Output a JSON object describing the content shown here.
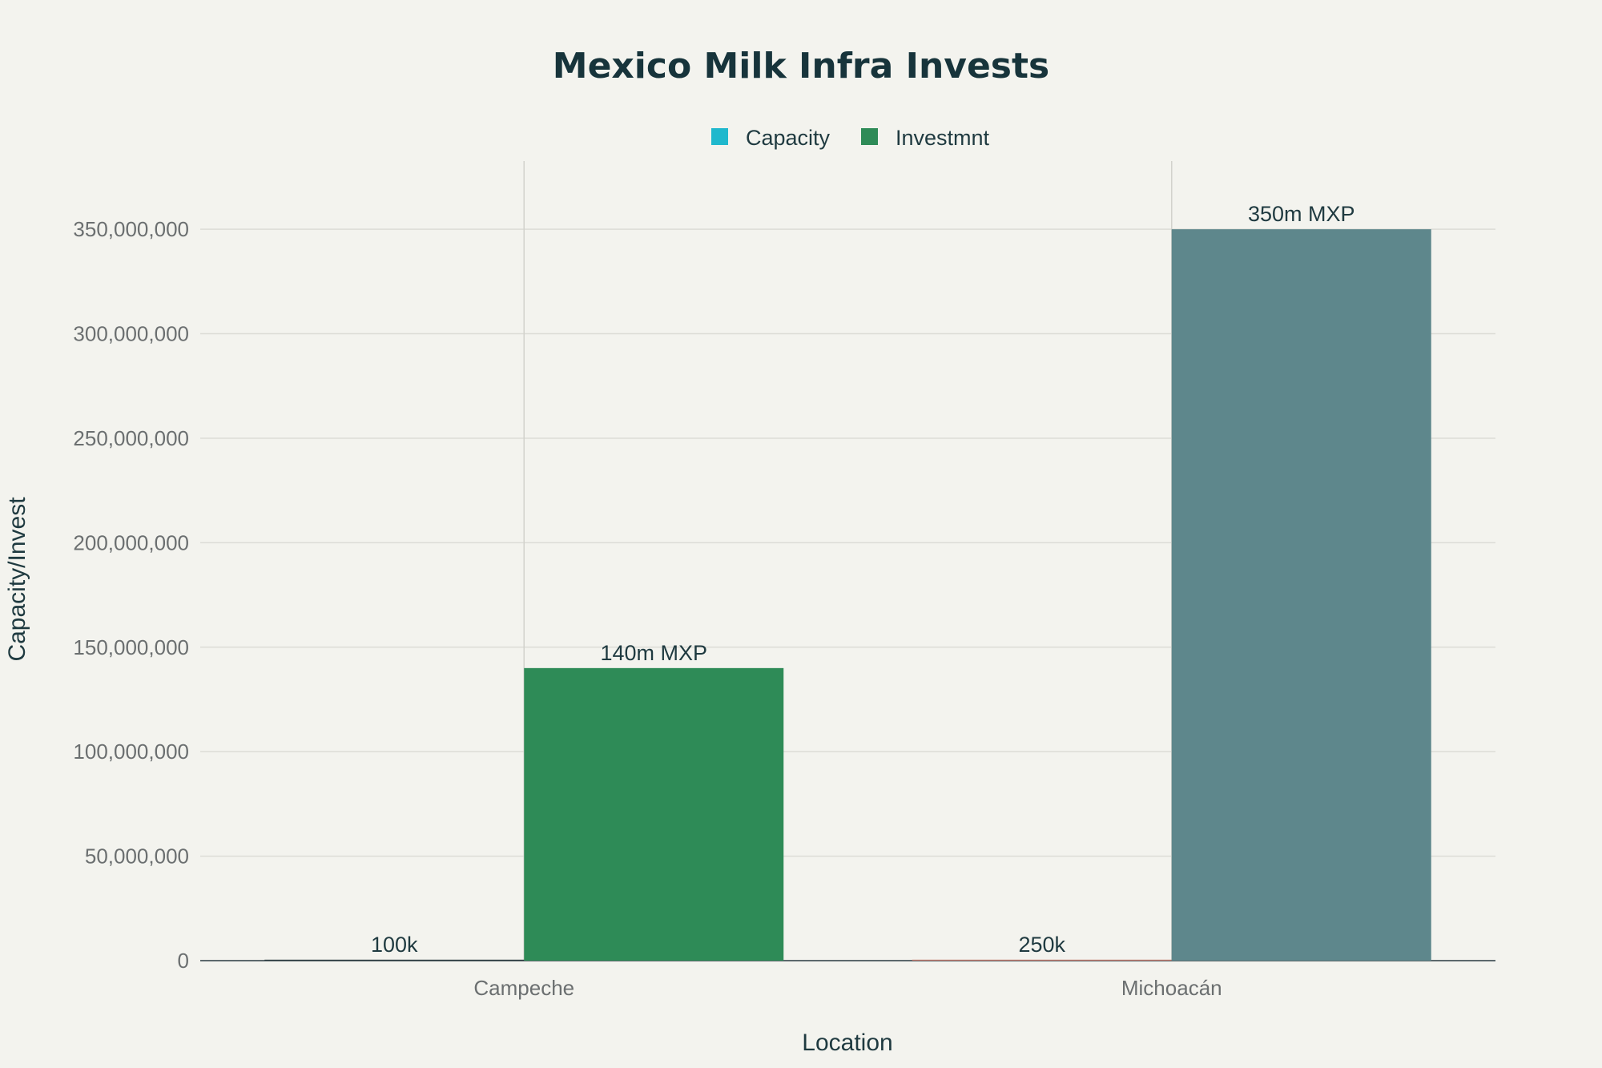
{
  "chart_data": {
    "type": "bar",
    "title": "Mexico Milk Infra Invests",
    "xlabel": "Location",
    "ylabel": "Capacity/Invest",
    "categories": [
      "Campeche",
      "Michoacán"
    ],
    "ylim": [
      0,
      365000000
    ],
    "yticks": [
      0,
      50000000,
      100000000,
      150000000,
      200000000,
      250000000,
      300000000,
      350000000
    ],
    "ytick_labels": [
      "0",
      "50,000,000",
      "100,000,000",
      "150,000,000",
      "200,000,000",
      "250,000,000",
      "300,000,000",
      "350,000,000"
    ],
    "grid": true,
    "legend_position": "top-center",
    "series": [
      {
        "name": "Capacity",
        "legend_color": "#1fb8cd",
        "values": [
          100000,
          250000
        ],
        "labels": [
          "100k",
          "250k"
        ],
        "colors": [
          "#2b3b40",
          "#c77a6e"
        ]
      },
      {
        "name": "Investmnt",
        "legend_color": "#2e8b57",
        "values": [
          140000000,
          350000000
        ],
        "labels": [
          "140m MXP",
          "350m MXP"
        ],
        "colors": [
          "#2e8b57",
          "#5e878c"
        ]
      }
    ]
  }
}
